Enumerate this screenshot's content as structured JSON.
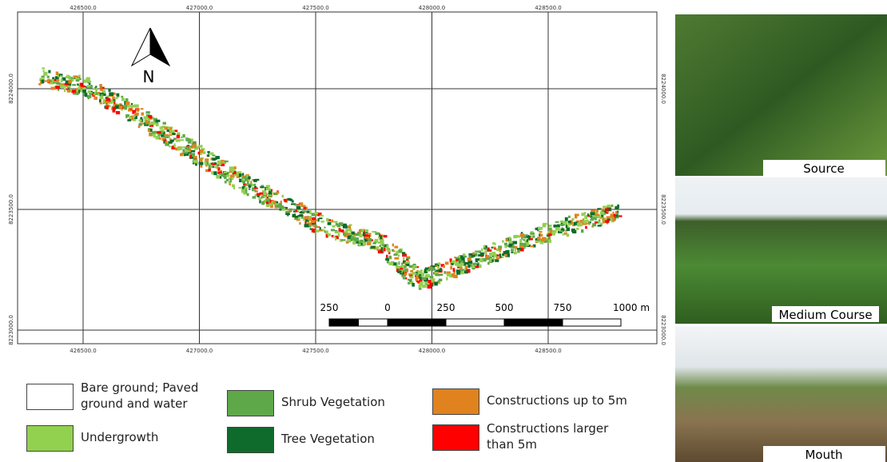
{
  "map": {
    "north_label": "N",
    "x_coords": [
      {
        "value": 426500,
        "label": "426500.0"
      },
      {
        "value": 427000,
        "label": "427000.0"
      },
      {
        "value": 427500,
        "label": "427500.0"
      },
      {
        "value": 428000,
        "label": "428000.0"
      },
      {
        "value": 428500,
        "label": "428500.0"
      }
    ],
    "y_coords": [
      {
        "value": 8224000,
        "label": "8224000.0"
      },
      {
        "value": 8223500,
        "label": "8223500.0"
      },
      {
        "value": 8223000,
        "label": "8223000.0"
      }
    ],
    "scale_bar": [
      {
        "value": -250,
        "label": "250"
      },
      0,
      250,
      500,
      750,
      {
        "value": 1000,
        "label": "1000 m"
      }
    ]
  },
  "legend": [
    {
      "label": "Bare ground; Paved ground and water",
      "color": "#ffffff"
    },
    {
      "label": "Undergrowth",
      "color": "#92d050"
    },
    {
      "label": "Shrub Vegetation",
      "color": "#5ea84a"
    },
    {
      "label": "Tree Vegetation",
      "color": "#0e6b2b"
    },
    {
      "label": "Constructions up to 5m",
      "color": "#e0821e"
    },
    {
      "label": "Constructions larger than 5m",
      "color": "#ff0000"
    }
  ],
  "photos": [
    {
      "caption": "Source"
    },
    {
      "caption": "Medium Course"
    },
    {
      "caption": "Mouth"
    }
  ]
}
